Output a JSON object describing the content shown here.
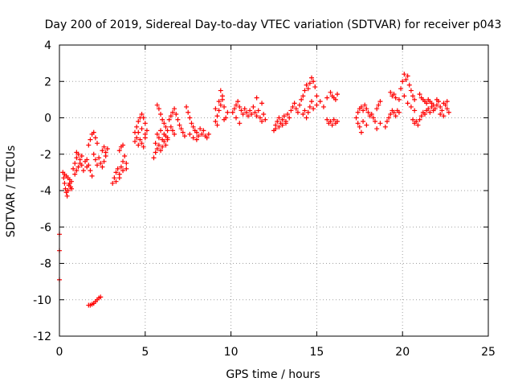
{
  "chart_data": {
    "type": "scatter",
    "title": "Day 200 of 2019, Sidereal Day-to-day VTEC variation (SDTVAR) for receiver p043",
    "xlabel": "GPS time / hours",
    "ylabel": "SDTVAR / TECUs",
    "xlim": [
      0,
      25
    ],
    "ylim": [
      -12,
      4
    ],
    "xticks": [
      0,
      5,
      10,
      15,
      20,
      25
    ],
    "yticks": [
      -12,
      -10,
      -8,
      -6,
      -4,
      -2,
      0,
      2,
      4
    ],
    "grid": true,
    "marker": "+",
    "color": "#ff0000",
    "series": [
      {
        "name": "SDTVAR",
        "points": [
          [
            0.0,
            -6.4
          ],
          [
            0.0,
            -7.3
          ],
          [
            0.0,
            -8.9
          ],
          [
            0.2,
            -3.0
          ],
          [
            0.25,
            -3.3
          ],
          [
            0.3,
            -3.6
          ],
          [
            0.35,
            -3.9
          ],
          [
            0.4,
            -4.1
          ],
          [
            0.45,
            -4.3
          ],
          [
            0.5,
            -4.0
          ],
          [
            0.55,
            -3.7
          ],
          [
            0.6,
            -3.4
          ],
          [
            0.65,
            -3.8
          ],
          [
            0.7,
            -3.5
          ],
          [
            0.3,
            -3.1
          ],
          [
            0.4,
            -3.2
          ],
          [
            0.5,
            -3.3
          ],
          [
            0.6,
            -3.6
          ],
          [
            0.7,
            -3.9
          ],
          [
            0.8,
            -2.8
          ],
          [
            0.9,
            -2.5
          ],
          [
            1.0,
            -2.2
          ],
          [
            1.1,
            -2.0
          ],
          [
            1.2,
            -2.3
          ],
          [
            1.3,
            -2.6
          ],
          [
            1.4,
            -2.9
          ],
          [
            0.9,
            -3.1
          ],
          [
            1.0,
            -2.9
          ],
          [
            1.1,
            -2.7
          ],
          [
            1.2,
            -2.5
          ],
          [
            1.0,
            -1.9
          ],
          [
            1.3,
            -2.1
          ],
          [
            1.5,
            -2.4
          ],
          [
            1.6,
            -2.7
          ],
          [
            1.6,
            -2.3
          ],
          [
            1.7,
            -2.6
          ],
          [
            1.8,
            -2.9
          ],
          [
            1.9,
            -3.2
          ],
          [
            1.7,
            -1.5
          ],
          [
            1.8,
            -1.2
          ],
          [
            1.9,
            -0.9
          ],
          [
            2.0,
            -0.8
          ],
          [
            2.1,
            -1.1
          ],
          [
            2.2,
            -1.4
          ],
          [
            2.0,
            -2.0
          ],
          [
            2.1,
            -2.3
          ],
          [
            2.2,
            -2.6
          ],
          [
            2.3,
            -2.2
          ],
          [
            2.4,
            -2.5
          ],
          [
            2.5,
            -2.7
          ],
          [
            2.6,
            -2.4
          ],
          [
            2.7,
            -2.1
          ],
          [
            2.5,
            -1.8
          ],
          [
            2.6,
            -1.6
          ],
          [
            2.7,
            -1.9
          ],
          [
            2.8,
            -1.7
          ],
          [
            1.7,
            -10.3
          ],
          [
            1.8,
            -10.3
          ],
          [
            1.9,
            -10.25
          ],
          [
            2.0,
            -10.2
          ],
          [
            2.1,
            -10.1
          ],
          [
            2.2,
            -10.0
          ],
          [
            2.3,
            -9.9
          ],
          [
            2.4,
            -9.85
          ],
          [
            3.1,
            -3.6
          ],
          [
            3.2,
            -3.3
          ],
          [
            3.3,
            -3.0
          ],
          [
            3.4,
            -2.8
          ],
          [
            3.5,
            -3.1
          ],
          [
            3.6,
            -2.7
          ],
          [
            3.7,
            -2.4
          ],
          [
            3.8,
            -2.1
          ],
          [
            3.9,
            -2.5
          ],
          [
            3.3,
            -3.5
          ],
          [
            3.5,
            -3.3
          ],
          [
            3.7,
            -2.9
          ],
          [
            3.9,
            -2.8
          ],
          [
            3.5,
            -1.8
          ],
          [
            3.6,
            -1.6
          ],
          [
            3.7,
            -1.5
          ],
          [
            4.4,
            -0.8
          ],
          [
            4.5,
            -0.5
          ],
          [
            4.6,
            -0.2
          ],
          [
            4.7,
            0.0
          ],
          [
            4.8,
            0.2
          ],
          [
            4.9,
            0.0
          ],
          [
            5.0,
            -0.3
          ],
          [
            4.4,
            -1.3
          ],
          [
            4.5,
            -1.1
          ],
          [
            4.6,
            -1.5
          ],
          [
            4.7,
            -1.2
          ],
          [
            4.8,
            -1.4
          ],
          [
            4.9,
            -1.6
          ],
          [
            5.0,
            -1.1
          ],
          [
            5.1,
            -0.7
          ],
          [
            4.6,
            -0.8
          ],
          [
            4.8,
            -0.6
          ],
          [
            5.0,
            -0.9
          ],
          [
            5.5,
            -2.2
          ],
          [
            5.6,
            -1.9
          ],
          [
            5.7,
            -1.7
          ],
          [
            5.8,
            -1.5
          ],
          [
            5.9,
            -1.8
          ],
          [
            6.0,
            -1.6
          ],
          [
            6.1,
            -1.3
          ],
          [
            6.2,
            -1.5
          ],
          [
            6.3,
            -1.2
          ],
          [
            5.6,
            -1.4
          ],
          [
            5.8,
            -1.1
          ],
          [
            6.0,
            -1.2
          ],
          [
            6.2,
            -1.0
          ],
          [
            5.7,
            -0.9
          ],
          [
            5.9,
            -0.7
          ],
          [
            6.1,
            -0.9
          ],
          [
            6.3,
            -1.1
          ],
          [
            5.7,
            0.7
          ],
          [
            5.8,
            0.5
          ],
          [
            5.9,
            0.2
          ],
          [
            6.0,
            -0.1
          ],
          [
            6.1,
            -0.3
          ],
          [
            6.2,
            -0.5
          ],
          [
            6.3,
            -0.7
          ],
          [
            6.5,
            -0.5
          ],
          [
            6.6,
            -0.7
          ],
          [
            6.7,
            -0.9
          ],
          [
            6.4,
            -0.1
          ],
          [
            6.5,
            0.1
          ],
          [
            6.6,
            0.3
          ],
          [
            6.7,
            0.5
          ],
          [
            6.8,
            0.2
          ],
          [
            6.9,
            -0.1
          ],
          [
            7.0,
            -0.4
          ],
          [
            7.1,
            -0.6
          ],
          [
            7.2,
            -0.8
          ],
          [
            7.3,
            -1.0
          ],
          [
            7.4,
            0.6
          ],
          [
            7.5,
            0.3
          ],
          [
            7.6,
            0.0
          ],
          [
            7.7,
            -0.3
          ],
          [
            7.8,
            -0.5
          ],
          [
            7.9,
            -0.7
          ],
          [
            8.0,
            -0.8
          ],
          [
            8.1,
            -1.0
          ],
          [
            7.6,
            -0.9
          ],
          [
            7.8,
            -1.1
          ],
          [
            8.0,
            -1.2
          ],
          [
            8.2,
            -0.6
          ],
          [
            8.3,
            -0.9
          ],
          [
            8.4,
            -0.7
          ],
          [
            8.5,
            -1.0
          ],
          [
            8.6,
            -1.1
          ],
          [
            8.7,
            -0.9
          ],
          [
            9.1,
            -0.2
          ],
          [
            9.2,
            0.1
          ],
          [
            9.3,
            0.4
          ],
          [
            9.4,
            0.7
          ],
          [
            9.5,
            1.0
          ],
          [
            9.6,
            0.6
          ],
          [
            9.1,
            0.5
          ],
          [
            9.3,
            0.9
          ],
          [
            9.4,
            1.5
          ],
          [
            9.5,
            1.2
          ],
          [
            9.2,
            -0.4
          ],
          [
            9.6,
            -0.1
          ],
          [
            9.7,
            0.0
          ],
          [
            9.8,
            0.3
          ],
          [
            10.1,
            0.3
          ],
          [
            10.2,
            0.5
          ],
          [
            10.3,
            0.7
          ],
          [
            10.4,
            0.9
          ],
          [
            10.5,
            0.6
          ],
          [
            10.6,
            0.4
          ],
          [
            10.7,
            0.2
          ],
          [
            10.8,
            0.5
          ],
          [
            10.9,
            0.3
          ],
          [
            11.0,
            0.1
          ],
          [
            11.1,
            0.4
          ],
          [
            11.2,
            0.2
          ],
          [
            11.3,
            0.6
          ],
          [
            11.4,
            0.3
          ],
          [
            11.5,
            0.1
          ],
          [
            11.6,
            0.4
          ],
          [
            11.7,
            0.0
          ],
          [
            11.8,
            -0.2
          ],
          [
            11.9,
            0.2
          ],
          [
            12.0,
            -0.1
          ],
          [
            11.5,
            1.1
          ],
          [
            11.8,
            0.8
          ],
          [
            10.5,
            -0.3
          ],
          [
            10.3,
            0.0
          ],
          [
            12.5,
            -0.7
          ],
          [
            12.6,
            -0.4
          ],
          [
            12.7,
            -0.2
          ],
          [
            12.8,
            0.0
          ],
          [
            12.9,
            -0.3
          ],
          [
            13.0,
            -0.1
          ],
          [
            13.1,
            0.1
          ],
          [
            13.2,
            -0.2
          ],
          [
            13.3,
            0.2
          ],
          [
            13.4,
            0.0
          ],
          [
            12.6,
            -0.6
          ],
          [
            12.8,
            -0.5
          ],
          [
            13.0,
            -0.4
          ],
          [
            13.2,
            -0.3
          ],
          [
            13.5,
            0.4
          ],
          [
            13.6,
            0.6
          ],
          [
            13.7,
            0.8
          ],
          [
            13.8,
            0.5
          ],
          [
            13.9,
            0.3
          ],
          [
            14.0,
            0.7
          ],
          [
            14.1,
            1.0
          ],
          [
            14.2,
            1.2
          ],
          [
            14.3,
            1.5
          ],
          [
            14.4,
            1.8
          ],
          [
            14.5,
            1.6
          ],
          [
            14.6,
            1.9
          ],
          [
            14.7,
            2.2
          ],
          [
            14.8,
            2.0
          ],
          [
            14.9,
            1.7
          ],
          [
            14.2,
            0.2
          ],
          [
            14.3,
            0.4
          ],
          [
            14.4,
            0.0
          ],
          [
            14.5,
            0.3
          ],
          [
            14.6,
            0.6
          ],
          [
            14.7,
            0.9
          ],
          [
            14.8,
            0.5
          ],
          [
            15.0,
            0.7
          ],
          [
            15.2,
            0.9
          ],
          [
            15.4,
            0.6
          ],
          [
            15.6,
            1.1
          ],
          [
            15.0,
            1.2
          ],
          [
            15.8,
            1.4
          ],
          [
            15.9,
            1.2
          ],
          [
            16.0,
            1.1
          ],
          [
            16.1,
            1.0
          ],
          [
            16.2,
            1.3
          ],
          [
            15.6,
            -0.1
          ],
          [
            15.7,
            -0.3
          ],
          [
            15.8,
            -0.2
          ],
          [
            15.9,
            -0.4
          ],
          [
            16.0,
            -0.1
          ],
          [
            16.1,
            -0.3
          ],
          [
            16.2,
            -0.2
          ],
          [
            17.3,
            0.0
          ],
          [
            17.4,
            0.3
          ],
          [
            17.5,
            0.5
          ],
          [
            17.6,
            0.6
          ],
          [
            17.7,
            0.4
          ],
          [
            17.8,
            0.7
          ],
          [
            17.9,
            0.5
          ],
          [
            18.0,
            0.3
          ],
          [
            18.1,
            0.1
          ],
          [
            17.4,
            -0.3
          ],
          [
            17.5,
            -0.5
          ],
          [
            17.7,
            -0.2
          ],
          [
            17.9,
            -0.4
          ],
          [
            17.6,
            -0.8
          ],
          [
            18.2,
            0.2
          ],
          [
            18.3,
            0.0
          ],
          [
            18.4,
            -0.2
          ],
          [
            18.5,
            0.5
          ],
          [
            18.6,
            0.7
          ],
          [
            18.7,
            0.9
          ],
          [
            18.5,
            -0.6
          ],
          [
            18.7,
            -0.3
          ],
          [
            19.0,
            -0.5
          ],
          [
            19.1,
            -0.2
          ],
          [
            19.2,
            0.0
          ],
          [
            19.3,
            0.2
          ],
          [
            19.4,
            0.4
          ],
          [
            19.5,
            0.3
          ],
          [
            19.6,
            0.1
          ],
          [
            19.7,
            0.4
          ],
          [
            19.8,
            0.3
          ],
          [
            19.3,
            1.4
          ],
          [
            19.4,
            1.2
          ],
          [
            19.5,
            1.3
          ],
          [
            19.6,
            1.1
          ],
          [
            19.8,
            1.0
          ],
          [
            19.9,
            1.6
          ],
          [
            20.0,
            2.0
          ],
          [
            20.1,
            2.4
          ],
          [
            20.2,
            2.1
          ],
          [
            20.3,
            2.3
          ],
          [
            20.4,
            1.8
          ],
          [
            20.5,
            1.5
          ],
          [
            20.6,
            1.2
          ],
          [
            20.7,
            1.0
          ],
          [
            20.1,
            1.2
          ],
          [
            20.3,
            0.8
          ],
          [
            20.5,
            0.6
          ],
          [
            20.7,
            0.4
          ],
          [
            20.6,
            -0.1
          ],
          [
            20.7,
            -0.3
          ],
          [
            20.8,
            -0.2
          ],
          [
            20.9,
            -0.4
          ],
          [
            21.0,
            -0.1
          ],
          [
            21.1,
            0.1
          ],
          [
            21.2,
            0.3
          ],
          [
            21.3,
            0.2
          ],
          [
            21.4,
            0.4
          ],
          [
            21.5,
            0.5
          ],
          [
            21.6,
            0.3
          ],
          [
            21.7,
            0.6
          ],
          [
            21.8,
            0.4
          ],
          [
            21.0,
            1.3
          ],
          [
            21.1,
            1.1
          ],
          [
            21.2,
            1.0
          ],
          [
            21.3,
            0.9
          ],
          [
            21.4,
            0.8
          ],
          [
            21.5,
            1.0
          ],
          [
            21.6,
            0.9
          ],
          [
            21.7,
            0.8
          ],
          [
            21.8,
            0.7
          ],
          [
            21.9,
            0.5
          ],
          [
            22.0,
            0.7
          ],
          [
            22.1,
            0.9
          ],
          [
            22.2,
            0.6
          ],
          [
            22.3,
            0.4
          ],
          [
            22.4,
            0.8
          ],
          [
            22.5,
            0.7
          ],
          [
            22.6,
            0.5
          ],
          [
            22.7,
            0.3
          ],
          [
            22.2,
            0.2
          ],
          [
            22.4,
            0.1
          ],
          [
            22.0,
            1.0
          ],
          [
            22.6,
            0.9
          ]
        ]
      }
    ]
  }
}
